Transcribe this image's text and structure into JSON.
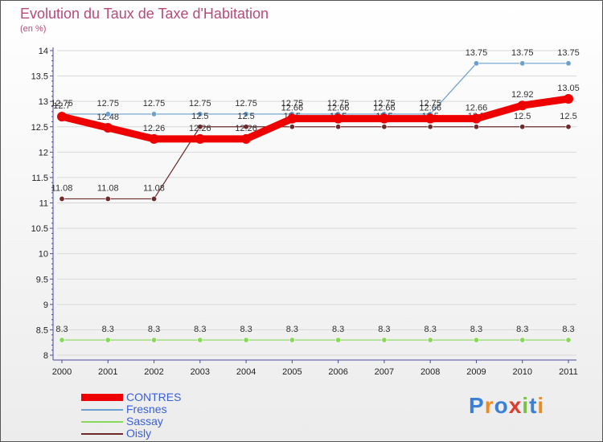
{
  "chart_data": {
    "type": "line",
    "title": "Evolution du Taux de Taxe d'Habitation",
    "subtitle": "(en %)",
    "xlabel": "",
    "ylabel": "",
    "ylim": [
      8,
      14
    ],
    "yticks": [
      "8",
      "8.5",
      "9",
      "9.5",
      "10",
      "10.5",
      "11",
      "11.5",
      "12",
      "12.5",
      "13",
      "13.5",
      "14"
    ],
    "categories": [
      "2000",
      "2001",
      "2002",
      "2003",
      "2004",
      "2005",
      "2006",
      "2007",
      "2008",
      "2009",
      "2010",
      "2011"
    ],
    "series": [
      {
        "name": "Fresnes",
        "color": "#6a9fd0",
        "values": [
          12.75,
          12.75,
          12.75,
          12.75,
          12.75,
          12.75,
          12.75,
          12.75,
          12.75,
          13.75,
          13.75,
          13.75
        ],
        "labels": [
          "12.75",
          "12.75",
          "12.75",
          "12.75",
          "12.75",
          "12.75",
          "12.75",
          "12.75",
          "12.75",
          "13.75",
          "13.75",
          "13.75"
        ]
      },
      {
        "name": "Sassay",
        "color": "#88d85a",
        "values": [
          8.3,
          8.3,
          8.3,
          8.3,
          8.3,
          8.3,
          8.3,
          8.3,
          8.3,
          8.3,
          8.3,
          8.3
        ],
        "labels": [
          "8.3",
          "8.3",
          "8.3",
          "8.3",
          "8.3",
          "8.3",
          "8.3",
          "8.3",
          "8.3",
          "8.3",
          "8.3",
          "8.3"
        ]
      },
      {
        "name": "Oisly",
        "color": "#6e2a2a",
        "values": [
          11.08,
          11.08,
          11.08,
          12.5,
          12.5,
          12.5,
          12.5,
          12.5,
          12.5,
          12.5,
          12.5,
          12.5
        ],
        "labels": [
          "11.08",
          "11.08",
          "11.08",
          "12.5",
          "12.5",
          "12.5",
          "12.5",
          "12.5",
          "12.5",
          "12.5",
          "12.5",
          "12.5"
        ]
      },
      {
        "name": "CONTRES",
        "color": "#ee0000",
        "values": [
          12.7,
          12.48,
          12.26,
          12.26,
          12.26,
          12.66,
          12.66,
          12.66,
          12.66,
          12.66,
          12.92,
          13.05
        ],
        "labels": [
          "12.7",
          "12.48",
          "12.26",
          "12.26",
          "12.26",
          "12.66",
          "12.66",
          "12.66",
          "12.66",
          "12.66",
          "12.92",
          "13.05"
        ]
      }
    ],
    "legend": [
      {
        "name": "CONTRES",
        "color": "#ee0000"
      },
      {
        "name": "Fresnes",
        "color": "#6a9fd0"
      },
      {
        "name": "Sassay",
        "color": "#88d85a"
      },
      {
        "name": "Oisly",
        "color": "#6e2a2a"
      }
    ],
    "legend_position": "bottom-left"
  },
  "logo": {
    "letters": [
      "P",
      "r",
      "o",
      "x",
      "i",
      "t",
      "i"
    ],
    "colors": [
      "#3a7fd8",
      "#f08a1c",
      "#3a7fd8",
      "#e23b2e",
      "#7ac143",
      "#3a7fd8",
      "#f08a1c"
    ]
  }
}
